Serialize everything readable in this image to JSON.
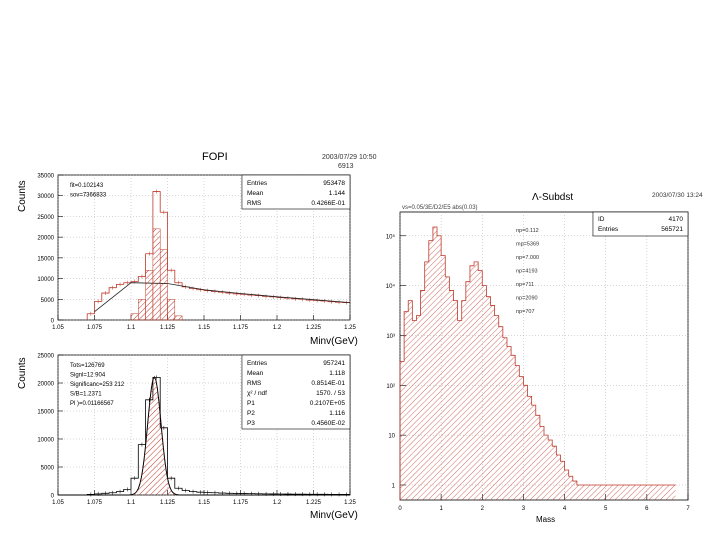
{
  "chart_data": [
    {
      "type": "bar",
      "title": "FOPI",
      "timestamp": "2003/07/29  10:50",
      "timestamp2": "6913",
      "xlabel": "Minv(GeV)",
      "ylabel": "Counts",
      "xlim": [
        1.05,
        1.25
      ],
      "ylim": [
        0,
        35000
      ],
      "xticks": [
        "1.05",
        "1.075",
        "1.1",
        "1.125",
        "1.15",
        "1.175",
        "1.2",
        "1.225",
        "1.25"
      ],
      "yticks": [
        "0",
        "5000",
        "10000",
        "15000",
        "20000",
        "25000",
        "30000",
        "35000"
      ],
      "stats": [
        {
          "label": "Entries",
          "value": "953478"
        },
        {
          "label": "Mean",
          "value": "1.144"
        },
        {
          "label": "RMS",
          "value": "0.4266E-01"
        }
      ],
      "annotations": [
        "fit=0.102143",
        "sov=7366833"
      ],
      "series": [
        {
          "kind": "histogram",
          "x": [
            1.075,
            1.08,
            1.085,
            1.09,
            1.095,
            1.1,
            1.105,
            1.11,
            1.115,
            1.12,
            1.125,
            1.13,
            1.135,
            1.14,
            1.145,
            1.15,
            1.155,
            1.16,
            1.165,
            1.17,
            1.175,
            1.18,
            1.185,
            1.19,
            1.195,
            1.2,
            1.205,
            1.21,
            1.215,
            1.22,
            1.225,
            1.23,
            1.235,
            1.24,
            1.245,
            1.25
          ],
          "values": [
            1500,
            4500,
            6500,
            7800,
            8600,
            9000,
            9300,
            10500,
            16000,
            31000,
            26000,
            12000,
            9000,
            8000,
            7600,
            7300,
            7100,
            6900,
            6700,
            6500,
            6300,
            6200,
            6000,
            5900,
            5700,
            5600,
            5400,
            5300,
            5100,
            5000,
            4800,
            4700,
            4600,
            4400,
            4300,
            4200
          ]
        },
        {
          "kind": "background-fit",
          "x": [
            1.075,
            1.1,
            1.125,
            1.15,
            1.175,
            1.2,
            1.225,
            1.25
          ],
          "values": [
            2000,
            9000,
            8800,
            7300,
            6400,
            5600,
            4900,
            4200
          ]
        },
        {
          "kind": "hatched-signal",
          "x": [
            1.105,
            1.11,
            1.115,
            1.12,
            1.125,
            1.13,
            1.135
          ],
          "values": [
            1500,
            5000,
            12000,
            22000,
            17000,
            5000,
            1000
          ]
        }
      ]
    },
    {
      "type": "bar",
      "xlabel": "Minv(GeV)",
      "ylabel": "Counts",
      "xlim": [
        1.05,
        1.25
      ],
      "ylim": [
        0,
        25000
      ],
      "xticks": [
        "1.05",
        "1.075",
        "1.1",
        "1.125",
        "1.15",
        "1.175",
        "1.2",
        "1.225",
        "1.25"
      ],
      "yticks": [
        "0",
        "5000",
        "10000",
        "15000",
        "20000",
        "25000"
      ],
      "stats": [
        {
          "label": "Entries",
          "value": "957241"
        },
        {
          "label": "Mean",
          "value": "1.118"
        },
        {
          "label": "RMS",
          "value": "0.8514E-01"
        },
        {
          "label": "χ² / ndf",
          "value": "1570. / 53"
        },
        {
          "label": "P1",
          "value": "0.2107E+05"
        },
        {
          "label": "P2",
          "value": "1.116"
        },
        {
          "label": "P3",
          "value": "0.4560E-02"
        }
      ],
      "annotations": [
        "Tots=126769",
        "Signl=12 904",
        "Significanc=253 212",
        "S/B=1.2371",
        "Pl )=0.01166567"
      ],
      "series": [
        {
          "kind": "histogram",
          "x": [
            1.075,
            1.08,
            1.085,
            1.09,
            1.095,
            1.1,
            1.105,
            1.11,
            1.115,
            1.12,
            1.125,
            1.13,
            1.135,
            1.14,
            1.145,
            1.15,
            1.155,
            1.16,
            1.165,
            1.17,
            1.175,
            1.18,
            1.185,
            1.19,
            1.195,
            1.2,
            1.205,
            1.21,
            1.215,
            1.22,
            1.225,
            1.23,
            1.235,
            1.24,
            1.245,
            1.25
          ],
          "values": [
            100,
            200,
            300,
            400,
            600,
            1000,
            3000,
            9000,
            17000,
            21000,
            12000,
            3000,
            1200,
            800,
            600,
            500,
            450,
            400,
            350,
            300,
            280,
            260,
            240,
            220,
            200,
            190,
            180,
            170,
            160,
            150,
            140,
            130,
            120,
            110,
            100,
            100
          ]
        },
        {
          "kind": "gaussian-fit",
          "amplitude": 21070,
          "mean": 1.116,
          "sigma": 0.00456
        }
      ]
    },
    {
      "type": "bar",
      "title": "Λ-Subdst",
      "timestamp": "2003/07/30  13:24",
      "subtitle": "vs=0.05/3E/D2/E5  abs(0.03)",
      "xlabel": "Mass",
      "ylabel": "",
      "scale": "log",
      "xlim": [
        0,
        7
      ],
      "ylim": [
        0.5,
        300000
      ],
      "xticks": [
        "0",
        "1",
        "2",
        "3",
        "4",
        "5",
        "6",
        "7"
      ],
      "yticks": [
        "1",
        "10",
        "10²",
        "10³",
        "10⁴",
        "10⁵"
      ],
      "stats": [
        {
          "label": "ID",
          "value": "4170"
        },
        {
          "label": "Entries",
          "value": "565721"
        }
      ],
      "annotations": [
        "np=0.112",
        "mp=5369",
        "np=7.000",
        "np=4193",
        "np=711",
        "np=2090",
        "np=707"
      ],
      "series": [
        {
          "kind": "histogram",
          "x": [
            0.1,
            0.2,
            0.3,
            0.4,
            0.5,
            0.6,
            0.7,
            0.8,
            0.9,
            1.0,
            1.1,
            1.2,
            1.3,
            1.4,
            1.5,
            1.6,
            1.7,
            1.8,
            1.9,
            2.0,
            2.1,
            2.2,
            2.3,
            2.4,
            2.5,
            2.6,
            2.7,
            2.8,
            2.9,
            3.0,
            3.1,
            3.2,
            3.3,
            3.4,
            3.5,
            3.6,
            3.7,
            3.8,
            3.9,
            4.0,
            4.1,
            4.2,
            4.3,
            4.4,
            4.5,
            4.6,
            4.7,
            4.8,
            4.9,
            5.0,
            5.1,
            5.2,
            5.3,
            5.4,
            5.5,
            5.6,
            5.7,
            5.8,
            5.9,
            6.0,
            6.1,
            6.2,
            6.3,
            6.4,
            6.5,
            6.6,
            6.7
          ],
          "values": [
            300,
            3000,
            5000,
            2000,
            2500,
            8000,
            30000,
            80000,
            150000,
            100000,
            40000,
            15000,
            8000,
            5000,
            2000,
            5000,
            12000,
            25000,
            30000,
            20000,
            10000,
            6000,
            4000,
            2500,
            1500,
            900,
            600,
            400,
            250,
            150,
            100,
            60,
            40,
            25,
            15,
            10,
            8,
            6,
            4,
            3,
            2,
            1.5,
            1.2,
            1,
            1,
            1,
            1,
            1,
            1,
            1,
            1,
            1,
            1,
            1,
            1,
            1,
            1,
            1,
            1,
            1,
            1,
            1,
            1,
            1,
            1,
            1,
            1
          ]
        }
      ]
    }
  ]
}
